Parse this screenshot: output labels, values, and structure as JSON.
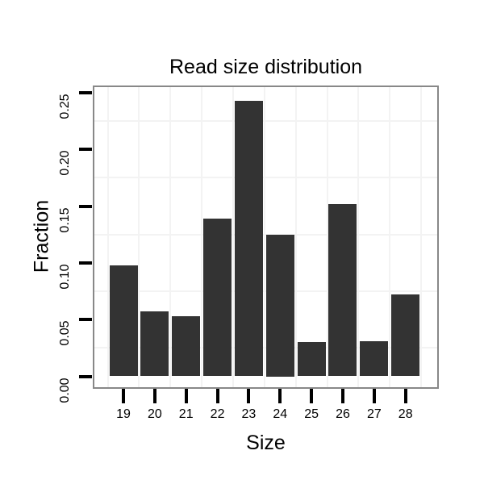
{
  "chart_data": {
    "type": "bar",
    "title": "Read size distribution",
    "xlabel": "Size",
    "ylabel": "Fraction",
    "categories": [
      "19",
      "20",
      "21",
      "22",
      "23",
      "24",
      "25",
      "26",
      "27",
      "28"
    ],
    "values": [
      0.098,
      0.057,
      0.053,
      0.139,
      0.243,
      0.125,
      0.03,
      0.152,
      0.031,
      0.072
    ],
    "ylim": [
      0,
      0.25
    ],
    "ytick_labels": [
      "0.00",
      "0.05",
      "0.10",
      "0.15",
      "0.20",
      "0.25"
    ],
    "ytick_values": [
      0,
      0.05,
      0.1,
      0.15,
      0.2,
      0.25
    ],
    "ytick_label_rotation_deg": 90,
    "legend": "none",
    "grid": "faint minor gridlines midway between ticks, horizontal and vertical",
    "bar_color": "#333333",
    "panel_border_color": "#888888",
    "gridline_color": "#f3f3f3",
    "tick_color": "#000000",
    "text_color": "#000000",
    "background_color": "#ffffff"
  }
}
